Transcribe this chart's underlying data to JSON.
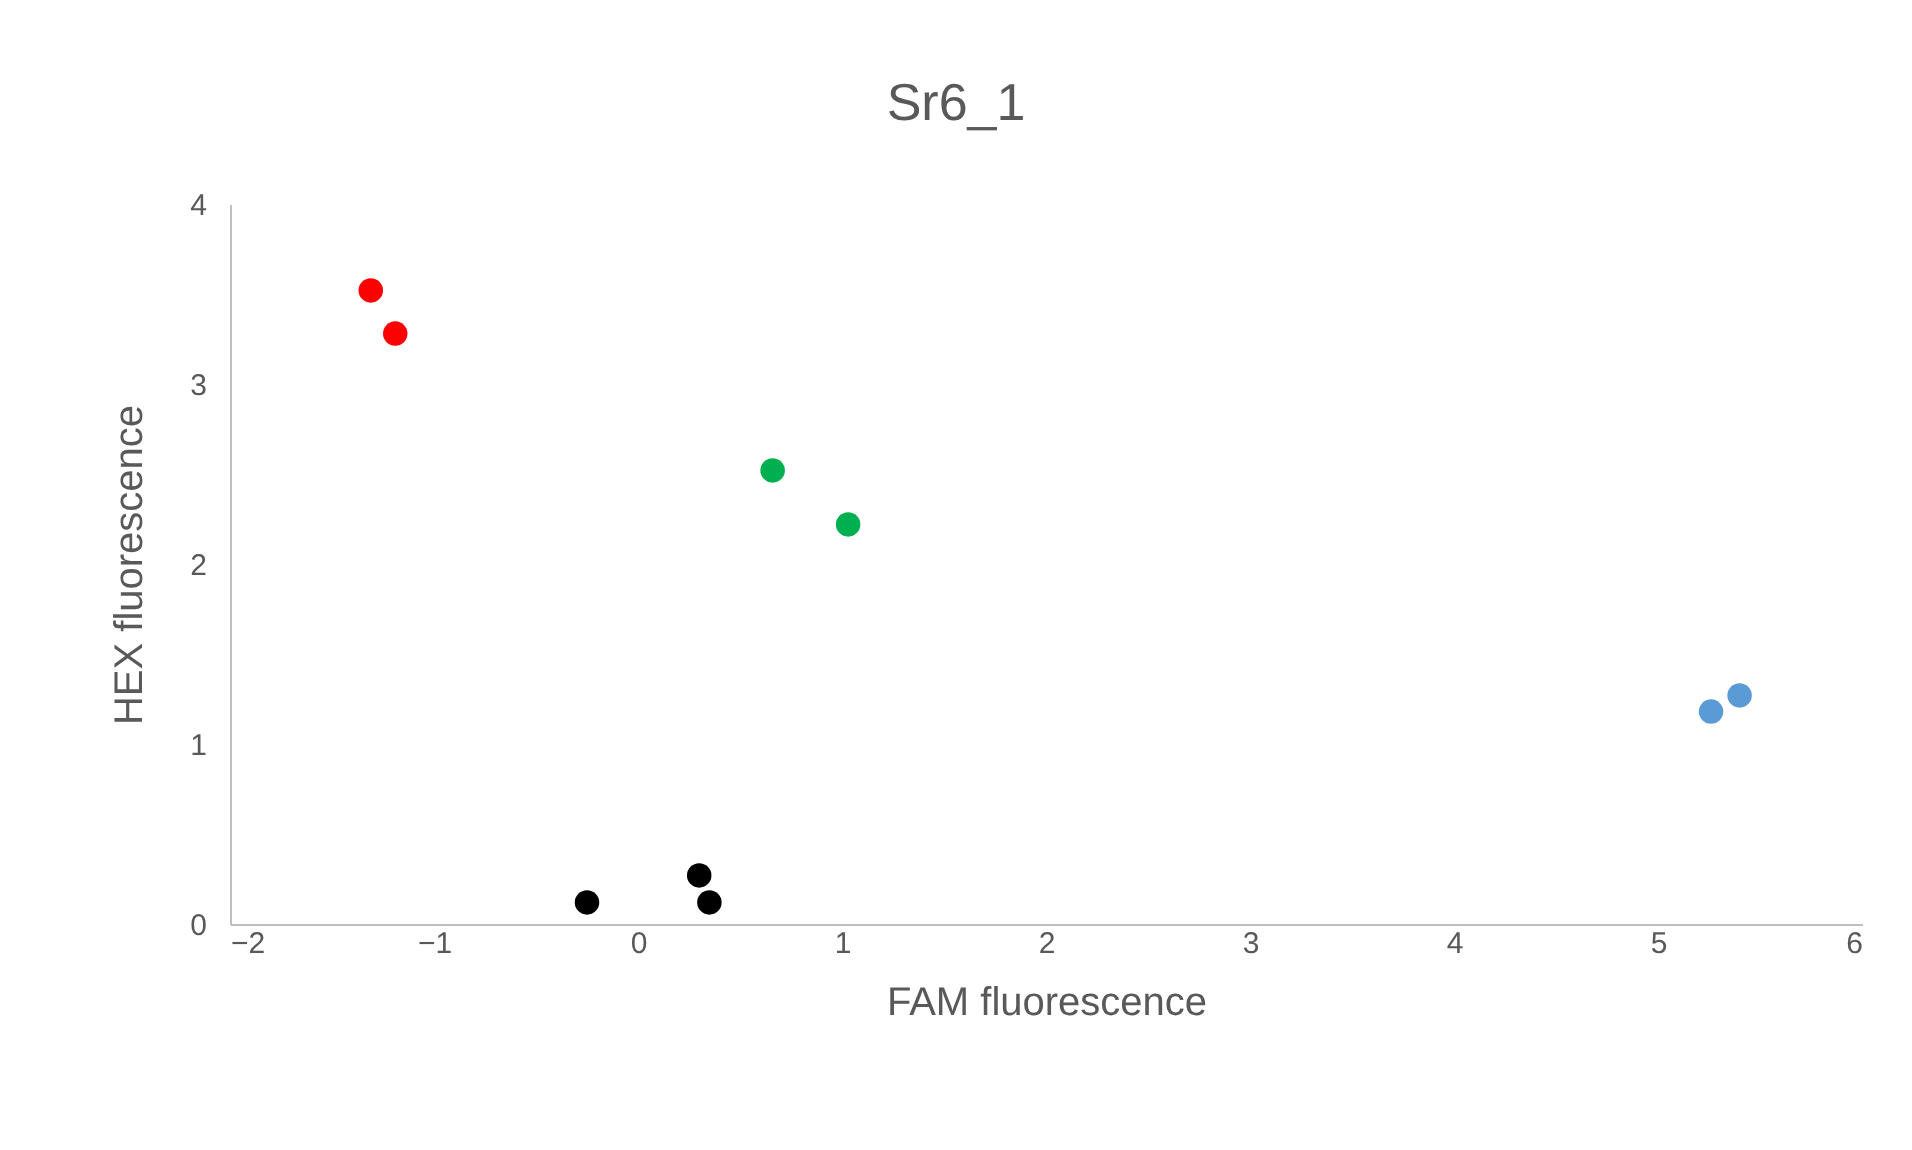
{
  "chart_data": {
    "type": "scatter",
    "title": "Sr6_1",
    "xlabel": "FAM fluorescence",
    "ylabel": "HEX fluorescence",
    "series": [
      {
        "color": "#ff0000",
        "x": [
          -1.31,
          -1.19
        ],
        "values": [
          3.52,
          3.28
        ]
      },
      {
        "color": "#00b050",
        "x": [
          0.66,
          1.03
        ],
        "values": [
          2.52,
          2.22
        ]
      },
      {
        "color": "#5b9bd5",
        "x": [
          5.26,
          5.4
        ],
        "values": [
          1.18,
          1.27
        ]
      },
      {
        "color": "#000000",
        "x": [
          -0.25,
          0.3,
          0.35
        ],
        "values": [
          0.12,
          0.27,
          0.12
        ]
      }
    ],
    "xlim": [
      -2,
      6
    ],
    "xticks": [
      -2,
      -1,
      0,
      1,
      2,
      3,
      4,
      5,
      6
    ],
    "ylim": [
      0,
      4
    ],
    "yticks": [
      0,
      1,
      2,
      3,
      4
    ],
    "grid": false,
    "legend": false,
    "marker": "circle"
  }
}
